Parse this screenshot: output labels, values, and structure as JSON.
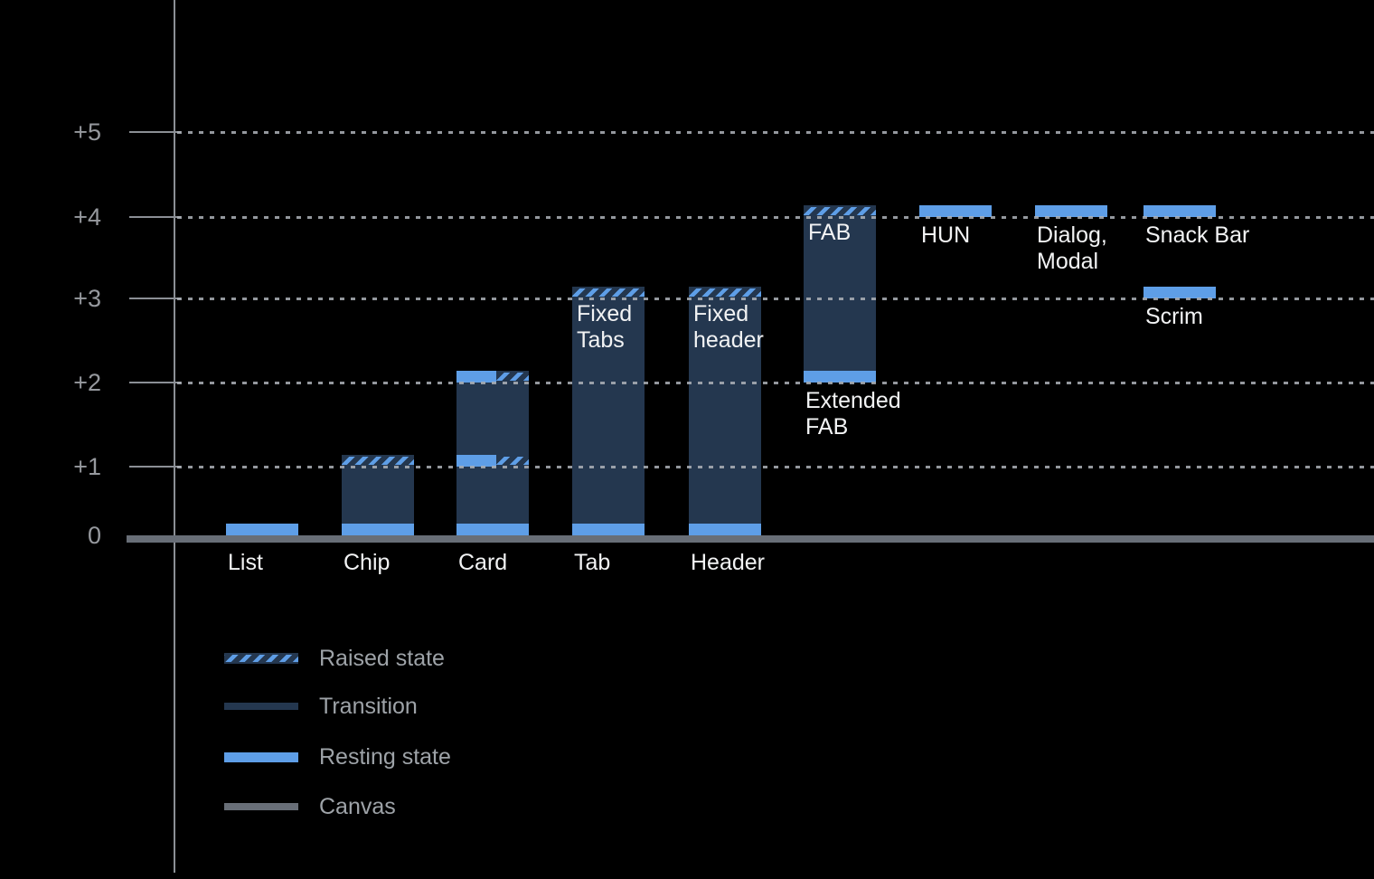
{
  "chart_data": {
    "type": "bar",
    "variant": "floating-stacked-elevation-diagram",
    "title": "",
    "xlabel": "",
    "ylabel": "",
    "ylim": [
      0,
      5.2
    ],
    "grid": "dotted horizontal lines at +1 through +5, drawn over bars",
    "legend_position": "bottom-left",
    "yticks": [
      {
        "label": "+5",
        "level": 5
      },
      {
        "label": "+4",
        "level": 4
      },
      {
        "label": "+3",
        "level": 3
      },
      {
        "label": "+2",
        "level": 2
      },
      {
        "label": "+1",
        "level": 1
      },
      {
        "label": "0",
        "level": 0
      }
    ],
    "elements": [
      {
        "name": "list",
        "col": 0,
        "axis_label": "List",
        "segments": [
          {
            "kind": "resting",
            "band_at": 0
          }
        ]
      },
      {
        "name": "chip",
        "col": 1,
        "axis_label": "Chip",
        "segments": [
          {
            "kind": "transition",
            "from": 0,
            "to": 1
          },
          {
            "kind": "resting",
            "band_at": 0
          },
          {
            "kind": "raised",
            "band_at": 1
          }
        ]
      },
      {
        "name": "card",
        "col": 2,
        "axis_label": "Card",
        "segments": [
          {
            "kind": "transition",
            "from": 0,
            "to": 2
          },
          {
            "kind": "resting",
            "band_at": 0
          },
          {
            "kind": "split",
            "band_at": 1
          },
          {
            "kind": "split",
            "band_at": 2
          }
        ]
      },
      {
        "name": "tab",
        "col": 3,
        "axis_label": "Tab",
        "inner_label": [
          "Fixed",
          "Tabs"
        ],
        "segments": [
          {
            "kind": "transition",
            "from": 0,
            "to": 3
          },
          {
            "kind": "resting",
            "band_at": 0
          },
          {
            "kind": "raised",
            "band_at": 3
          }
        ]
      },
      {
        "name": "header",
        "col": 4,
        "axis_label": "Header",
        "inner_label": [
          "Fixed",
          "header"
        ],
        "segments": [
          {
            "kind": "transition",
            "from": 0,
            "to": 3
          },
          {
            "kind": "resting",
            "band_at": 0
          },
          {
            "kind": "raised",
            "band_at": 3
          }
        ]
      },
      {
        "name": "fab",
        "col": 5,
        "inner_label": [
          "FAB"
        ],
        "below_label": [
          "Extended",
          "FAB"
        ],
        "below_at": 2,
        "segments": [
          {
            "kind": "transition",
            "from": 2,
            "to": 4
          },
          {
            "kind": "resting",
            "band_at": 2
          },
          {
            "kind": "raised",
            "band_at": 4
          }
        ]
      },
      {
        "name": "hun",
        "col": 6,
        "below_label": [
          "HUN"
        ],
        "below_at": 4,
        "segments": [
          {
            "kind": "resting",
            "band_at": 4
          }
        ]
      },
      {
        "name": "dialog-modal",
        "col": 7,
        "below_label": [
          "Dialog,",
          "Modal"
        ],
        "below_at": 4,
        "segments": [
          {
            "kind": "resting",
            "band_at": 4
          }
        ]
      },
      {
        "name": "snack-bar",
        "col": 8,
        "below_label": [
          "Snack Bar"
        ],
        "below_at": 4,
        "segments": [
          {
            "kind": "resting",
            "band_at": 4
          }
        ]
      },
      {
        "name": "scrim",
        "col": 8,
        "below_label": [
          "Scrim"
        ],
        "below_at": 3,
        "segments": [
          {
            "kind": "resting",
            "band_at": 3
          }
        ]
      }
    ],
    "legend": [
      {
        "kind": "raised",
        "label": "Raised state"
      },
      {
        "kind": "transition",
        "label": "Transition"
      },
      {
        "kind": "resting",
        "label": "Resting state"
      },
      {
        "kind": "canvas",
        "label": "Canvas"
      }
    ],
    "colors": {
      "background": "#000000",
      "resting": "#5E9EE7",
      "transition": "#24374F",
      "canvas": "#686E77",
      "grid": "#AEB3B9",
      "axis_line": "#8B8F95",
      "axis_text": "#96999E",
      "legend_text": "#9EA3A8",
      "bar_text": "#F2F3F4"
    }
  }
}
